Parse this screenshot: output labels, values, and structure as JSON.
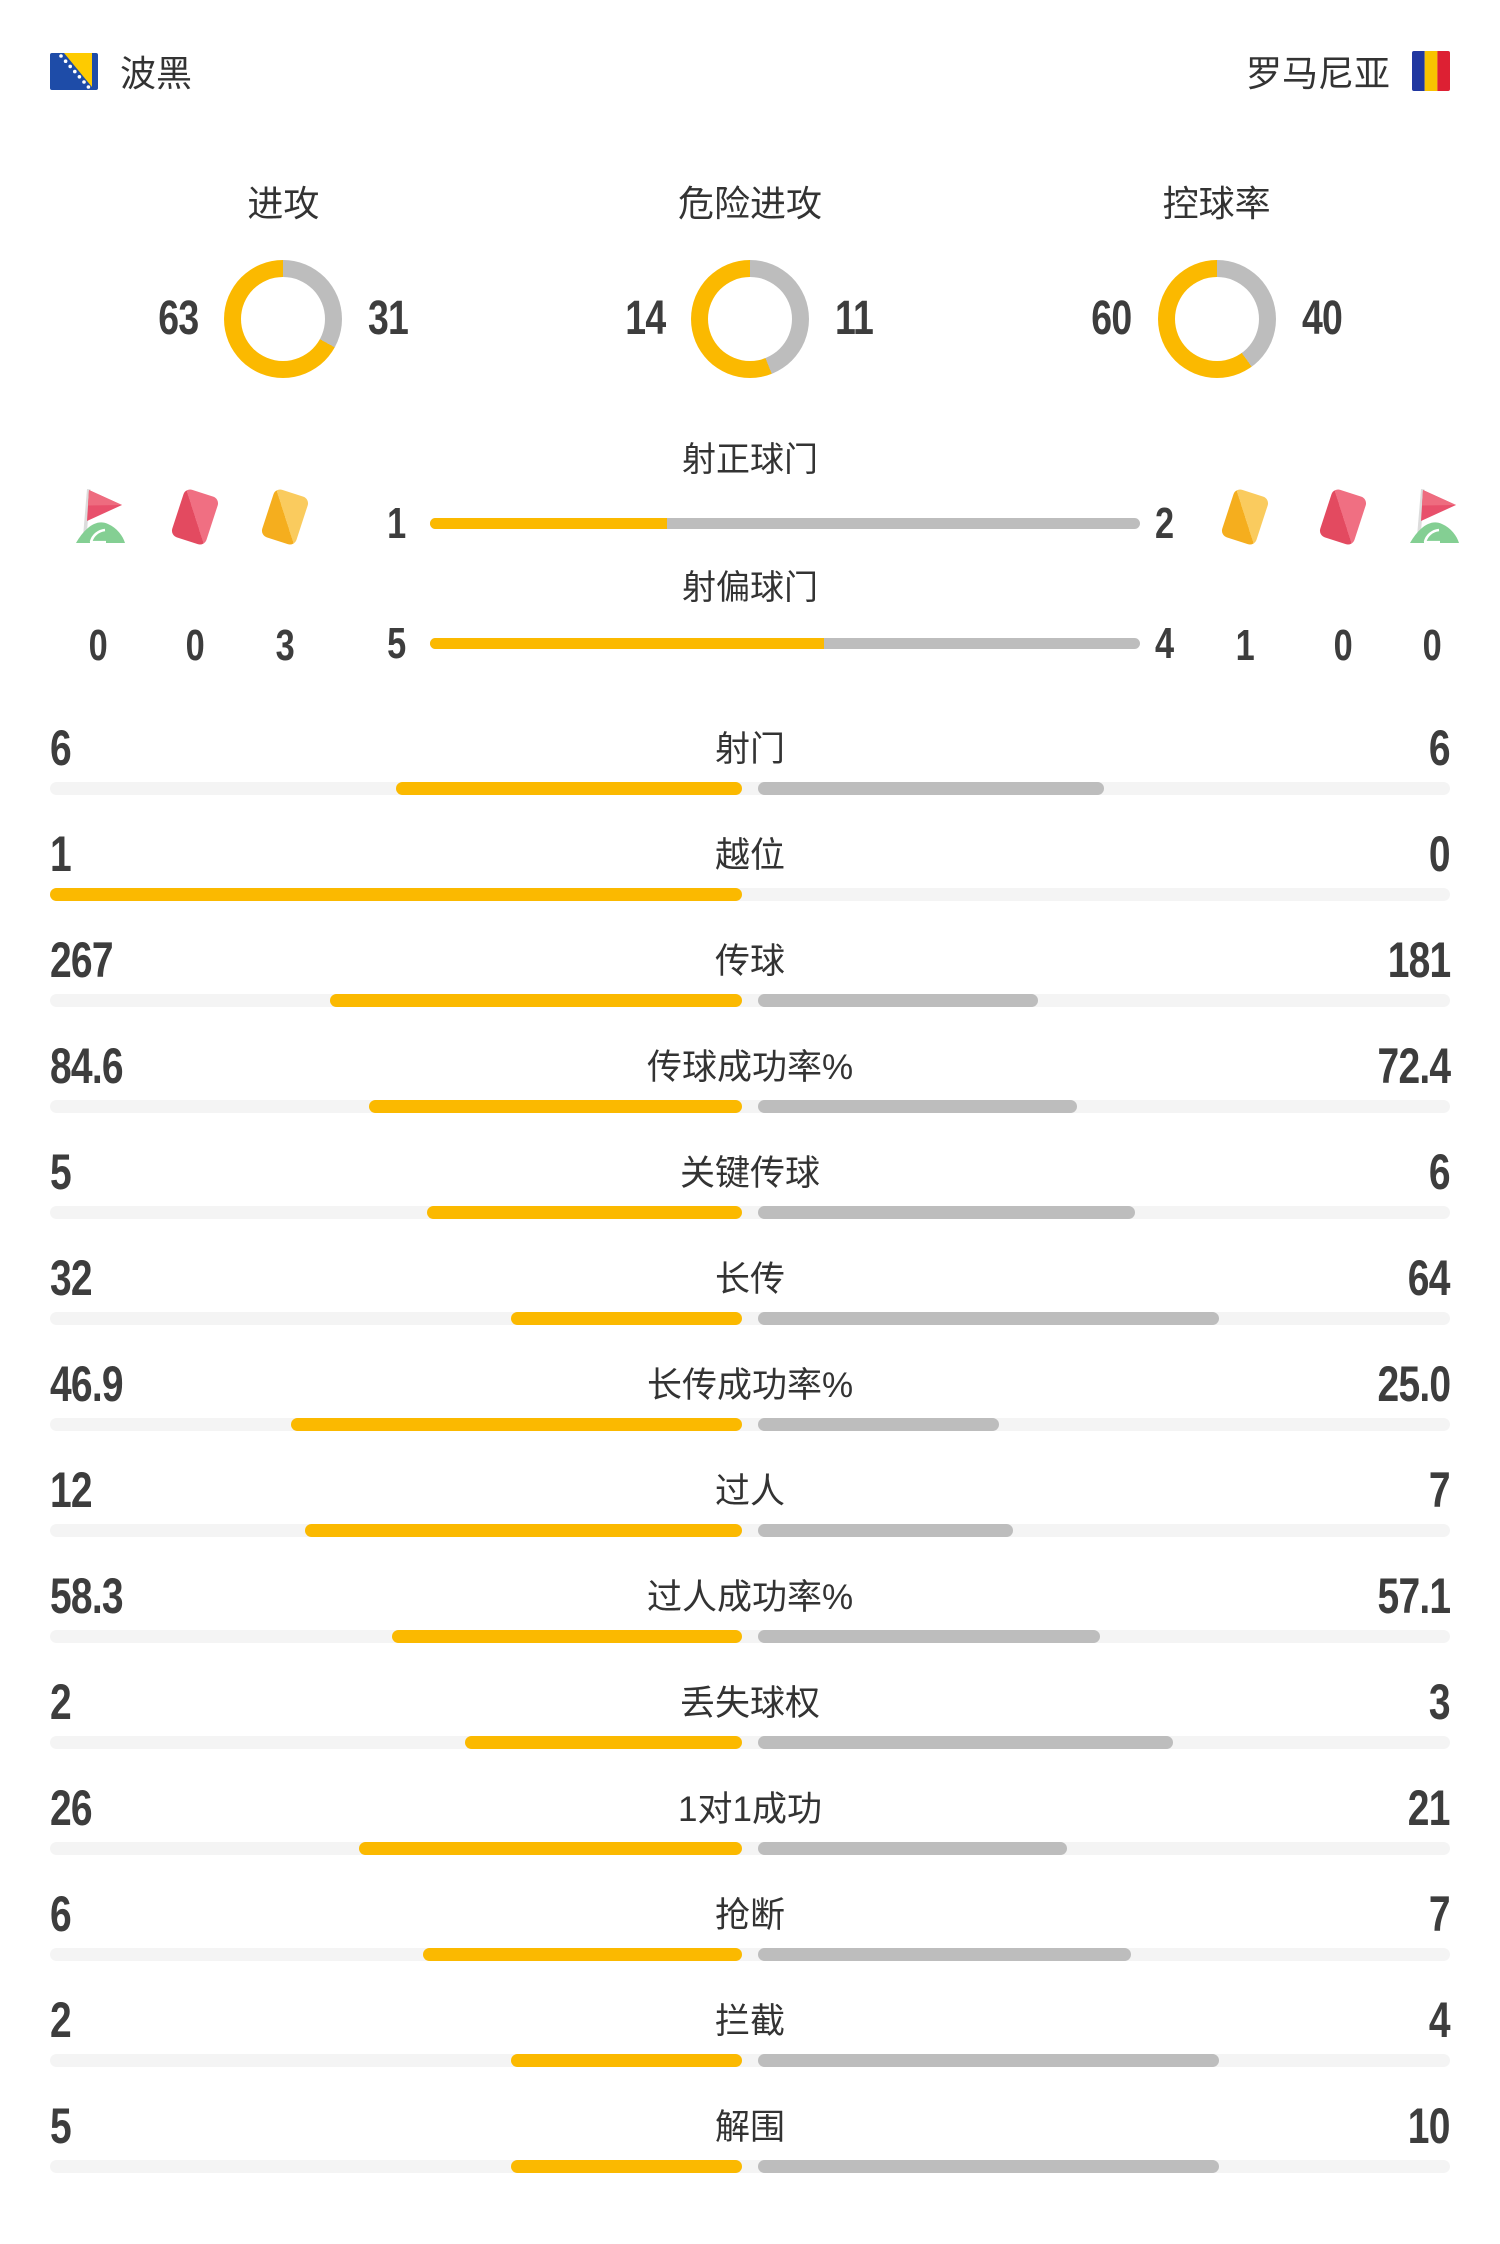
{
  "colors": {
    "accent": "#FBB900",
    "bar_gray": "#BDBDBD",
    "track": "#F4F4F4",
    "label": "#333333",
    "num": "#3D3D3D",
    "red_card": "#E34A60",
    "yellow_card": "#F5AE1E",
    "corner_flag_red": "#E8506B",
    "corner_flag_green": "#84CF93"
  },
  "header": {
    "home_name": "波黑",
    "away_name": "罗马尼亚"
  },
  "donuts": {
    "rows": [
      {
        "label": "进攻",
        "home": "63",
        "away": "31"
      },
      {
        "label": "危险进攻",
        "home": "14",
        "away": "11"
      },
      {
        "label": "控球率",
        "home": "60",
        "away": "40"
      }
    ]
  },
  "shots": {
    "rows": [
      {
        "label": "射正球门",
        "home": "1",
        "away": "2"
      },
      {
        "label": "射偏球门",
        "home": "5",
        "away": "4"
      }
    ]
  },
  "discipline": {
    "home": {
      "corner": "0",
      "red": "0",
      "yellow": "3"
    },
    "away": {
      "yellow": "1",
      "red": "0",
      "corner": "0"
    }
  },
  "stats": {
    "rows": [
      {
        "label": "射门",
        "home": "6",
        "away": "6"
      },
      {
        "label": "越位",
        "home": "1",
        "away": "0"
      },
      {
        "label": "传球",
        "home": "267",
        "away": "181"
      },
      {
        "label": "传球成功率%",
        "home": "84.6",
        "away": "72.4"
      },
      {
        "label": "关键传球",
        "home": "5",
        "away": "6"
      },
      {
        "label": "长传",
        "home": "32",
        "away": "64"
      },
      {
        "label": "长传成功率%",
        "home": "46.9",
        "away": "25.0"
      },
      {
        "label": "过人",
        "home": "12",
        "away": "7"
      },
      {
        "label": "过人成功率%",
        "home": "58.3",
        "away": "57.1"
      },
      {
        "label": "丢失球权",
        "home": "2",
        "away": "3"
      },
      {
        "label": "1对1成功",
        "home": "26",
        "away": "21"
      },
      {
        "label": "抢断",
        "home": "6",
        "away": "7"
      },
      {
        "label": "拦截",
        "home": "2",
        "away": "4"
      },
      {
        "label": "解围",
        "home": "5",
        "away": "10"
      }
    ]
  },
  "chart_data": [
    {
      "type": "pie",
      "title": "进攻",
      "series": [
        {
          "name": "波黑",
          "value": 63
        },
        {
          "name": "罗马尼亚",
          "value": 31
        }
      ],
      "colors": [
        "#FBB900",
        "#BDBDBD"
      ],
      "donut": true
    },
    {
      "type": "pie",
      "title": "危险进攻",
      "series": [
        {
          "name": "波黑",
          "value": 14
        },
        {
          "name": "罗马尼亚",
          "value": 11
        }
      ],
      "colors": [
        "#FBB900",
        "#BDBDBD"
      ],
      "donut": true
    },
    {
      "type": "pie",
      "title": "控球率",
      "series": [
        {
          "name": "波黑",
          "value": 60
        },
        {
          "name": "罗马尼亚",
          "value": 40
        }
      ],
      "colors": [
        "#FBB900",
        "#BDBDBD"
      ],
      "donut": true
    },
    {
      "type": "bar",
      "title": "比赛技术统计",
      "categories": [
        "射正球门",
        "射偏球门",
        "射门",
        "越位",
        "传球",
        "传球成功率%",
        "关键传球",
        "长传",
        "长传成功率%",
        "过人",
        "过人成功率%",
        "丢失球权",
        "1对1成功",
        "抢断",
        "拦截",
        "解围"
      ],
      "series": [
        {
          "name": "波黑",
          "values": [
            1,
            5,
            6,
            1,
            267,
            84.6,
            5,
            32,
            46.9,
            12,
            58.3,
            2,
            26,
            6,
            2,
            5
          ]
        },
        {
          "name": "罗马尼亚",
          "values": [
            2,
            4,
            6,
            0,
            181,
            72.4,
            6,
            64,
            25.0,
            7,
            57.1,
            3,
            21,
            7,
            4,
            10
          ]
        }
      ],
      "note": "每行条形按 值/(主+客) 比例从中心向两侧填充，主队黄色在左，客队灰色在右"
    },
    {
      "type": "bar",
      "title": "判罚与角球",
      "categories": [
        "角球",
        "红牌",
        "黄牌"
      ],
      "series": [
        {
          "name": "波黑",
          "values": [
            0,
            0,
            3
          ]
        },
        {
          "name": "罗马尼亚",
          "values": [
            0,
            0,
            1
          ]
        }
      ]
    }
  ]
}
